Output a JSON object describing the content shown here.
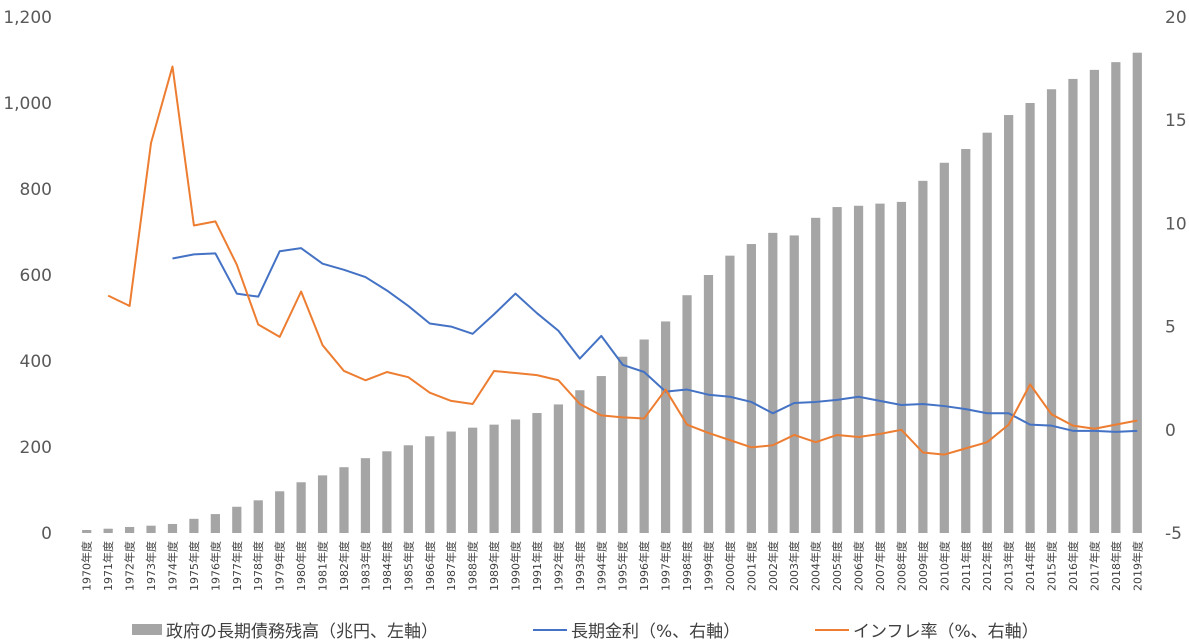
{
  "chart_data": {
    "type": "bar+line",
    "title": "",
    "grid": false,
    "legend_position": "bottom",
    "categories": [
      "1970年度",
      "1971年度",
      "1972年度",
      "1973年度",
      "1974年度",
      "1975年度",
      "1976年度",
      "1977年度",
      "1978年度",
      "1979年度",
      "1980年度",
      "1981年度",
      "1982年度",
      "1983年度",
      "1984年度",
      "1985年度",
      "1986年度",
      "1987年度",
      "1988年度",
      "1989年度",
      "1990年度",
      "1991年度",
      "1992年度",
      "1993年度",
      "1994年度",
      "1995年度",
      "1996年度",
      "1997年度",
      "1998年度",
      "1999年度",
      "2000年度",
      "2001年度",
      "2002年度",
      "2003年度",
      "2004年度",
      "2005年度",
      "2006年度",
      "2007年度",
      "2008年度",
      "2009年度",
      "2010年度",
      "2011年度",
      "2012年度",
      "2013年度",
      "2014年度",
      "2015年度",
      "2016年度",
      "2017年度",
      "2018年度",
      "2019年度"
    ],
    "left_axis": {
      "ylim": [
        0,
        1200
      ],
      "ticks": [
        0,
        200,
        400,
        600,
        800,
        1000,
        1200
      ],
      "tick_labels": [
        "0",
        "200",
        "400",
        "600",
        "800",
        "1,000",
        "1,200"
      ]
    },
    "right_axis": {
      "ylim": [
        -5,
        20
      ],
      "ticks": [
        -5,
        0,
        5,
        10,
        15,
        20
      ],
      "tick_labels": [
        "-5",
        "0",
        "5",
        "10",
        "15",
        "20"
      ]
    },
    "series": [
      {
        "name": "政府の長期債務残高（兆円、左軸）",
        "type": "bar",
        "axis": "left",
        "color": "#a5a5a5",
        "values": [
          7,
          10,
          14,
          17,
          21,
          33,
          44,
          61,
          76,
          97,
          118,
          134,
          153,
          174,
          190,
          204,
          225,
          236,
          245,
          252,
          264,
          279,
          299,
          332,
          365,
          410,
          450,
          492,
          553,
          600,
          645,
          672,
          698,
          692,
          733,
          758,
          761,
          766,
          770,
          819,
          861,
          893,
          931,
          972,
          1000,
          1032,
          1056,
          1077,
          1095,
          1117
        ]
      },
      {
        "name": "長期金利（%、右軸）",
        "type": "line",
        "axis": "right",
        "color": "#4472c4",
        "values": [
          null,
          null,
          null,
          null,
          8.3,
          8.5,
          8.55,
          6.6,
          6.45,
          8.65,
          8.8,
          8.05,
          7.75,
          7.4,
          6.75,
          6.0,
          5.15,
          5.0,
          4.65,
          5.6,
          6.6,
          5.65,
          4.8,
          3.45,
          4.55,
          3.15,
          2.8,
          1.85,
          1.95,
          1.7,
          1.6,
          1.35,
          0.8,
          1.3,
          1.35,
          1.45,
          1.6,
          1.4,
          1.2,
          1.25,
          1.15,
          1.0,
          0.8,
          0.8,
          0.25,
          0.2,
          -0.05,
          -0.05,
          -0.1,
          -0.05
        ]
      },
      {
        "name": "インフレ率（%、右軸）",
        "type": "line",
        "axis": "right",
        "color": "#ed7d31",
        "values": [
          null,
          6.5,
          6.0,
          13.9,
          17.6,
          9.9,
          10.1,
          8.0,
          5.1,
          4.5,
          6.7,
          4.1,
          2.85,
          2.4,
          2.8,
          2.55,
          1.8,
          1.4,
          1.25,
          2.85,
          2.75,
          2.65,
          2.4,
          1.25,
          0.7,
          0.6,
          0.55,
          1.95,
          0.25,
          -0.15,
          -0.5,
          -0.85,
          -0.75,
          -0.25,
          -0.6,
          -0.25,
          -0.35,
          -0.2,
          0.0,
          -1.1,
          -1.2,
          -0.9,
          -0.6,
          0.25,
          2.2,
          0.75,
          0.2,
          0.05,
          0.25,
          0.45
        ]
      }
    ]
  }
}
